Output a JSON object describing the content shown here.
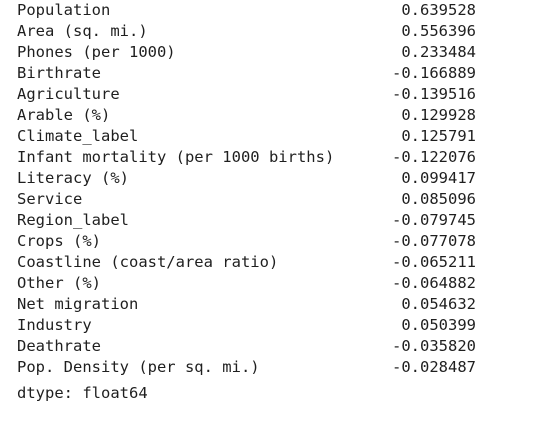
{
  "output": {
    "rows": [
      {
        "label": "Population",
        "value": "0.639528"
      },
      {
        "label": "Area (sq. mi.)",
        "value": "0.556396"
      },
      {
        "label": "Phones (per 1000)",
        "value": "0.233484"
      },
      {
        "label": "Birthrate",
        "value": "-0.166889"
      },
      {
        "label": "Agriculture",
        "value": "-0.139516"
      },
      {
        "label": "Arable (%)",
        "value": "0.129928"
      },
      {
        "label": "Climate_label",
        "value": "0.125791"
      },
      {
        "label": "Infant mortality (per 1000 births)",
        "value": "-0.122076"
      },
      {
        "label": "Literacy (%)",
        "value": "0.099417"
      },
      {
        "label": "Service",
        "value": "0.085096"
      },
      {
        "label": "Region_label",
        "value": "-0.079745"
      },
      {
        "label": "Crops (%)",
        "value": "-0.077078"
      },
      {
        "label": "Coastline (coast/area ratio)",
        "value": "-0.065211"
      },
      {
        "label": "Other (%)",
        "value": "-0.064882"
      },
      {
        "label": "Net migration",
        "value": "0.054632"
      },
      {
        "label": "Industry",
        "value": "0.050399"
      },
      {
        "label": "Deathrate",
        "value": "-0.035820"
      },
      {
        "label": "Pop. Density (per sq. mi.)",
        "value": "-0.028487"
      }
    ],
    "dtype": "dtype: float64"
  }
}
